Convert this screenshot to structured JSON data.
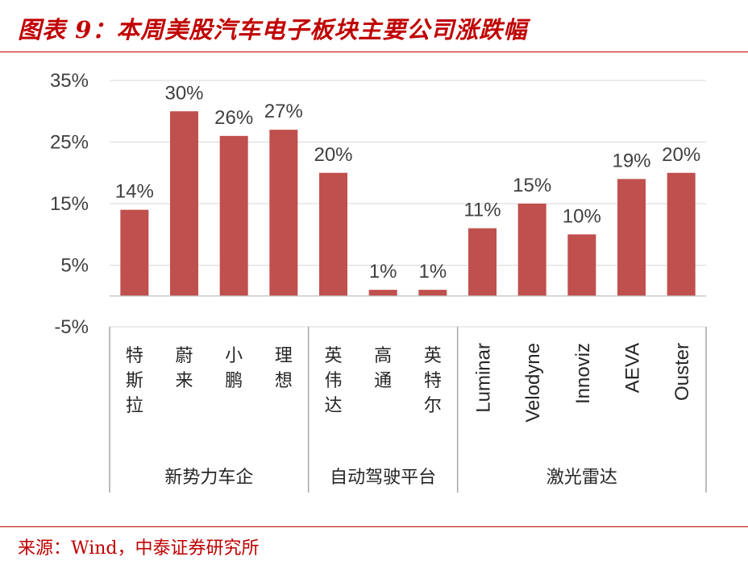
{
  "header": {
    "title": "图表 9：本周美股汽车电子板块主要公司涨跌幅"
  },
  "footer": {
    "source": "来源：Wind，中泰证券研究所"
  },
  "colors": {
    "accent": "#c00000",
    "bar": "#c0504d",
    "grid": "#d9d9d9"
  },
  "chart_data": {
    "type": "bar",
    "categories": [
      "特斯拉",
      "蔚来",
      "小鹏",
      "理想",
      "英伟达",
      "高通",
      "英特尔",
      "Luminar",
      "Velodyne",
      "Innoviz",
      "AEVA",
      "Ouster"
    ],
    "values": [
      0.14,
      0.3,
      0.26,
      0.27,
      0.2,
      0.01,
      0.01,
      0.11,
      0.15,
      0.1,
      0.19,
      0.2
    ],
    "value_labels": [
      "14%",
      "30%",
      "26%",
      "27%",
      "20%",
      "1%",
      "1%",
      "11%",
      "15%",
      "10%",
      "19%",
      "20%"
    ],
    "ylim": [
      -0.05,
      0.35
    ],
    "yticks": [
      0.35,
      0.25,
      0.15,
      0.05,
      -0.05
    ],
    "ytick_labels": [
      "35%",
      "25%",
      "15%",
      "5%",
      "-5%"
    ],
    "groups": [
      {
        "label": "新势力车企",
        "start": 0,
        "end": 3
      },
      {
        "label": "自动驾驶平台",
        "start": 4,
        "end": 6
      },
      {
        "label": "激光雷达",
        "start": 7,
        "end": 11
      }
    ],
    "grid": true,
    "legend": "none",
    "xlabel": "",
    "ylabel": ""
  }
}
